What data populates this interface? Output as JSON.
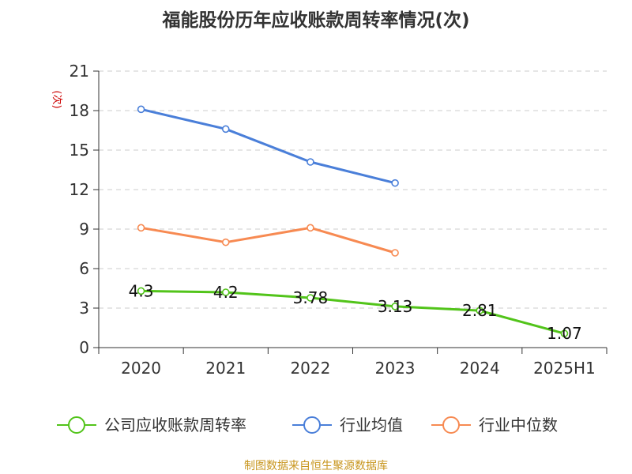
{
  "chart_data": {
    "type": "line",
    "title": "福能股份历年应收账款周转率情况(次)",
    "ylabel": "(次)",
    "xlabel": "",
    "categories": [
      "2020",
      "2021",
      "2022",
      "2023",
      "2024",
      "2025H1"
    ],
    "ylim": [
      0,
      21
    ],
    "yticks": [
      0,
      3,
      6,
      9,
      12,
      15,
      18,
      21
    ],
    "grid": true,
    "legend_position": "bottom",
    "series": [
      {
        "name": "公司应收账款周转率",
        "color": "#52c41a",
        "values": [
          4.3,
          4.2,
          3.78,
          3.13,
          2.81,
          1.07
        ],
        "labels": [
          "4.3",
          "4.2",
          "3.78",
          "3.13",
          "2.81",
          "1.07"
        ]
      },
      {
        "name": "行业均值",
        "color": "#4a7fd9",
        "values": [
          18.1,
          16.6,
          14.1,
          12.5,
          null,
          null
        ]
      },
      {
        "name": "行业中位数",
        "color": "#f78a52",
        "values": [
          9.1,
          8.0,
          9.1,
          7.2,
          null,
          null
        ]
      }
    ],
    "source": "制图数据来自恒生聚源数据库"
  }
}
